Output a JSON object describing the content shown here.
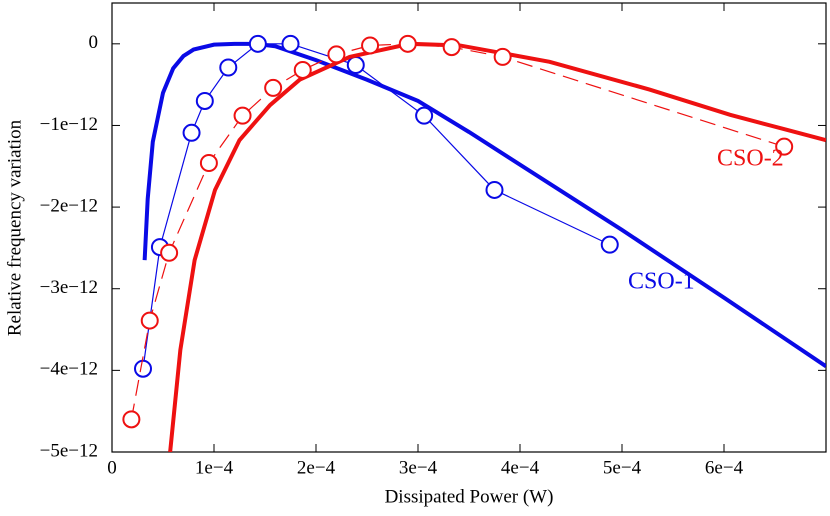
{
  "chart_data": {
    "type": "line",
    "xlabel": "Dissipated Power (W)",
    "ylabel": "Relative frequency variation",
    "xlim": [
      0,
      0.0007
    ],
    "ylim": [
      -5e-12,
      5e-13
    ],
    "xticks": [
      0,
      {
        "value": 0.0001,
        "label": "1e−4"
      },
      {
        "value": 0.0002,
        "label": "2e−4"
      },
      {
        "value": 0.0003,
        "label": "3e−4"
      },
      {
        "value": 0.0004,
        "label": "4e−4"
      },
      {
        "value": 0.0005,
        "label": "5e−4"
      },
      {
        "value": 0.0006,
        "label": "6e−4"
      }
    ],
    "yticks": [
      {
        "value": -5e-12,
        "label": "−5e−12"
      },
      {
        "value": -4e-12,
        "label": "−4e−12"
      },
      {
        "value": -3e-12,
        "label": "−3e−12"
      },
      {
        "value": -2e-12,
        "label": "−2e−12"
      },
      {
        "value": -1e-12,
        "label": "−1e−12"
      },
      0
    ],
    "series": [
      {
        "name": "CSO-1",
        "color": "#0a0ae6",
        "dashed": false,
        "x": [
          3.04e-05,
          4.7e-05,
          7.8e-05,
          9.1e-05,
          0.000114,
          0.000143,
          0.000175,
          0.000239,
          0.000306,
          0.000375,
          0.000488
        ],
        "values": [
          -3.98e-12,
          -2.49e-12,
          -1.09e-12,
          -7e-13,
          -2.9e-13,
          0,
          0,
          -2.6e-13,
          -8.8e-13,
          -1.79e-12,
          -2.46e-12
        ],
        "fit_x": [
          3.2e-05,
          3.5e-05,
          4e-05,
          5e-05,
          6e-05,
          7e-05,
          8e-05,
          0.0001,
          0.00012,
          0.00014,
          0.00016,
          0.0002,
          0.00025,
          0.0003,
          0.00035,
          0.0004,
          0.0005,
          0.0006,
          0.0007
        ],
        "fit_values": [
          -2.65e-12,
          -1.9e-12,
          -1.2e-12,
          -6e-13,
          -3e-13,
          -1.5e-13,
          -7e-14,
          -1e-14,
          0,
          0,
          -3e-14,
          -2e-13,
          -4.4e-13,
          -7e-13,
          -1.08e-12,
          -1.48e-12,
          -2.28e-12,
          -3.11e-12,
          -3.95e-12
        ]
      },
      {
        "name": "CSO-2",
        "color": "#ee1111",
        "dashed": true,
        "x": [
          1.9e-05,
          3.7e-05,
          5.6e-05,
          9.5e-05,
          0.000128,
          0.000158,
          0.000187,
          0.00022,
          0.000253,
          0.00029,
          0.000333,
          0.000383,
          0.000659
        ],
        "values": [
          -4.6e-12,
          -3.39e-12,
          -2.56e-12,
          -1.46e-12,
          -8.8e-13,
          -5.4e-13,
          -3.2e-13,
          -1.3e-13,
          -2e-14,
          0,
          -4e-14,
          -1.6e-13,
          -1.26e-12
        ],
        "fit_x": [
          5.7e-05,
          6.7e-05,
          8.1e-05,
          0.000101,
          0.000125,
          0.000155,
          0.000184,
          0.000233,
          0.000292,
          0.000341,
          0.000429,
          0.000527,
          0.000606,
          0.0007
        ],
        "fit_values": [
          -5e-12,
          -3.75e-12,
          -2.65e-12,
          -1.79e-12,
          -1.18e-12,
          -7.5e-13,
          -4.4e-13,
          -1.6e-13,
          0,
          -2e-14,
          -2.2e-13,
          -5.6e-13,
          -8.7e-13,
          -1.18e-12
        ]
      }
    ]
  }
}
